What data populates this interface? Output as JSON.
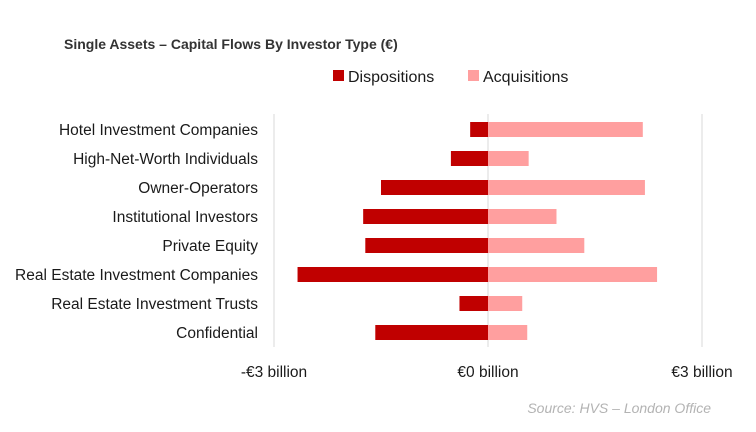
{
  "chart_data": {
    "type": "bar",
    "orientation": "horizontal",
    "title": "Single Assets – Capital Flows By Investor Type (€)",
    "categories": [
      "Hotel Investment Companies",
      "High-Net-Worth Individuals",
      "Owner-Operators",
      "Institutional Investors",
      "Private Equity",
      "Real Estate Investment Companies",
      "Real Estate Investment Trusts",
      "Confidential"
    ],
    "series": [
      {
        "name": "Dispositions",
        "color": "#c00000",
        "values": [
          -0.25,
          -0.52,
          -1.5,
          -1.75,
          -1.72,
          -2.67,
          -0.4,
          -1.58
        ]
      },
      {
        "name": "Acquisitions",
        "color": "#ff9f9f",
        "values": [
          2.17,
          0.57,
          2.2,
          0.96,
          1.35,
          2.37,
          0.48,
          0.55
        ]
      }
    ],
    "xlim": [
      -3,
      3
    ],
    "x_ticks": [
      -3,
      0,
      3
    ],
    "x_tick_labels": [
      "-€3 billion",
      "€0 billion",
      "€3 billion"
    ],
    "legend_position": "top",
    "grid": true,
    "xlabel": "",
    "ylabel": ""
  },
  "source": "Source: HVS – London Office"
}
